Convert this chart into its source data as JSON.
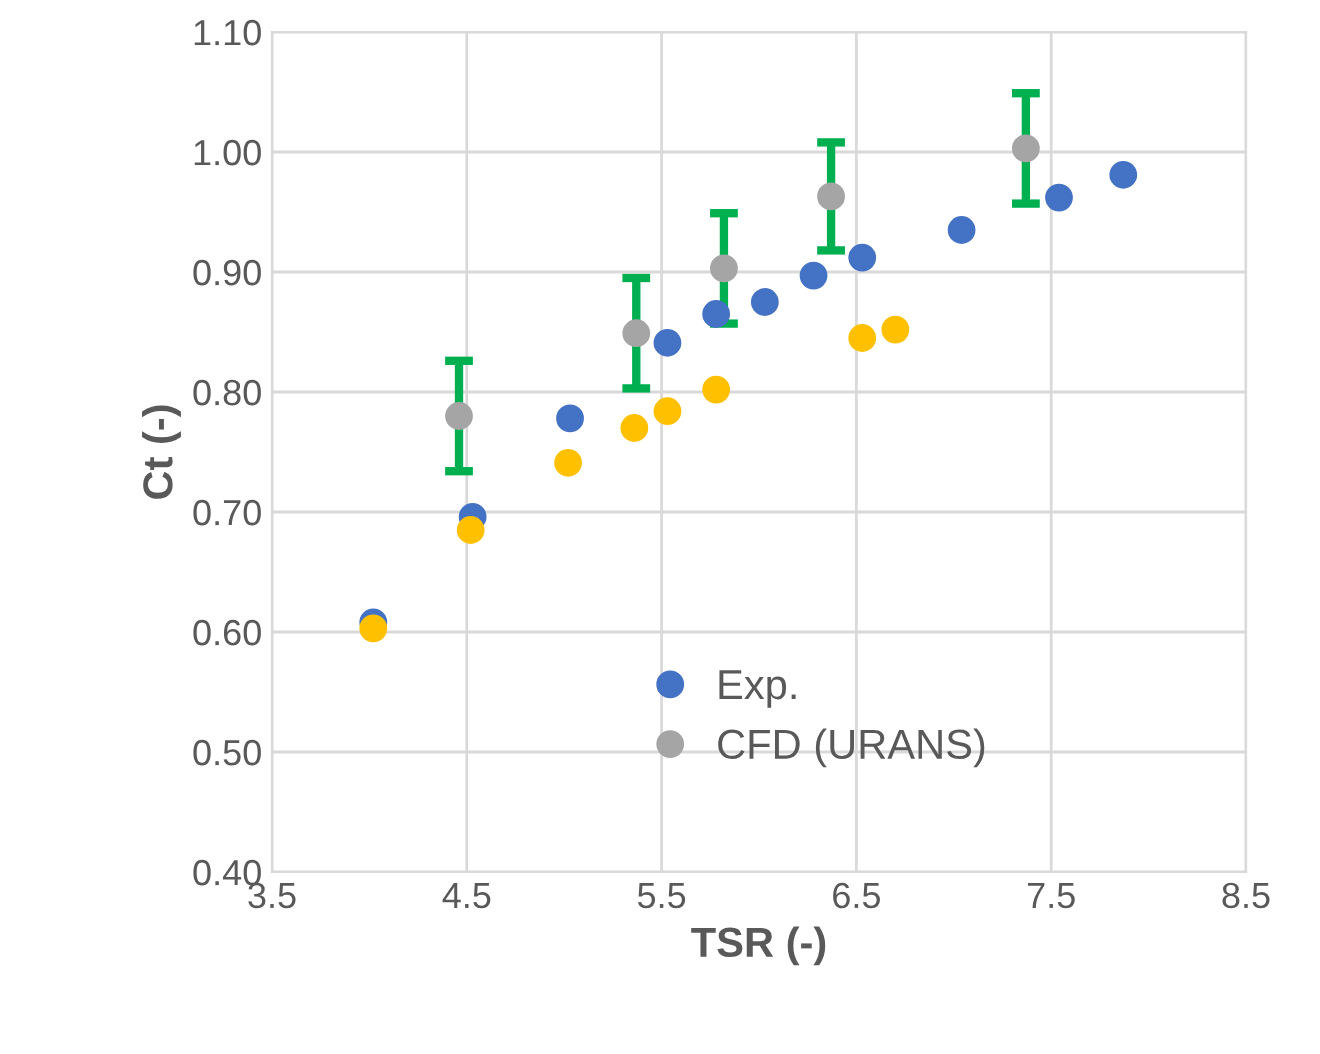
{
  "chart_data": {
    "type": "scatter",
    "xlabel": "TSR (-)",
    "ylabel": "Ct (-)",
    "xlim": [
      3.5,
      8.5
    ],
    "xticks": [
      3.5,
      4.5,
      5.5,
      6.5,
      7.5,
      8.5
    ],
    "ylim": [
      0.4,
      1.1
    ],
    "yticks": [
      {
        "value": 0.4,
        "label": "0.40"
      },
      {
        "value": 0.5,
        "label": "0.50"
      },
      {
        "value": 0.6,
        "label": "0.60"
      },
      {
        "value": 0.7,
        "label": "0.70"
      },
      {
        "value": 0.8,
        "label": "0.80"
      },
      {
        "value": 0.9,
        "label": "0.90"
      },
      {
        "value": 1.0,
        "label": "1.00"
      },
      {
        "value": 1.1,
        "label": "1.10"
      }
    ],
    "grid": true,
    "legend": "bottom",
    "marker": "circle",
    "series": [
      {
        "name": "Exp.",
        "color": "#4472c4",
        "x": [
          4.02,
          4.53,
          5.03,
          5.53,
          5.78,
          6.03,
          6.28,
          6.53,
          7.04,
          7.54,
          7.87
        ],
        "values": [
          0.608,
          0.696,
          0.778,
          0.841,
          0.865,
          0.875,
          0.897,
          0.912,
          0.935,
          0.962,
          0.981
        ]
      },
      {
        "name": "CFD (URANS)",
        "color": "#a5a5a5",
        "x": [
          4.46,
          5.37,
          5.82,
          6.37,
          7.37
        ],
        "values": [
          0.78,
          0.849,
          0.903,
          0.963,
          1.003
        ],
        "errors": [
          0.046,
          0.046,
          0.046,
          0.045,
          0.046
        ]
      },
      {
        "color": "#ffc000",
        "x": [
          4.02,
          4.52,
          5.02,
          5.36,
          5.53,
          5.78,
          6.53,
          6.7
        ],
        "values": [
          0.603,
          0.685,
          0.741,
          0.77,
          0.784,
          0.802,
          0.845,
          0.852
        ]
      }
    ]
  }
}
